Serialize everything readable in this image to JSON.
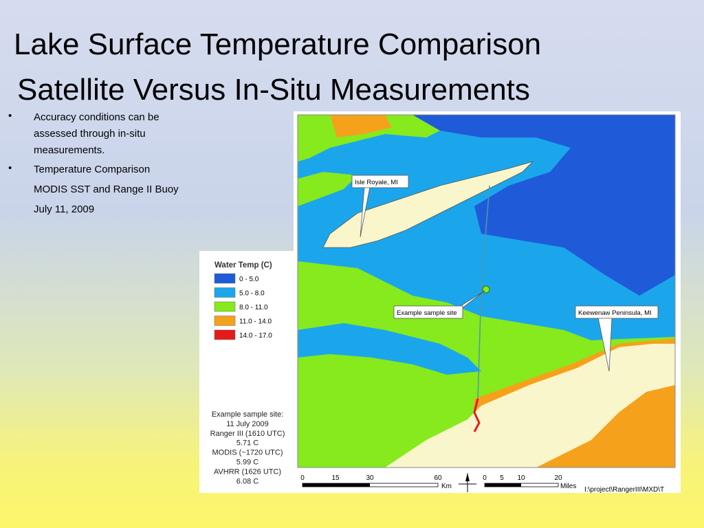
{
  "title": [
    "Lake Surface Temperature Comparison",
    "Satellite Versus In-Situ Measurements"
  ],
  "bullets": [
    "Accuracy conditions can be",
    "assessed through in-situ",
    "measurements.",
    "Temperature Comparison"
  ],
  "notes": [
    "MODIS SST and Range II Buoy",
    "July 11, 2009"
  ],
  "legend": {
    "title": "Water Temp (C)",
    "items": [
      {
        "label": "0 - 5.0",
        "color": "#1f5bd8"
      },
      {
        "label": "5.0 - 8.0",
        "color": "#1ba6ec"
      },
      {
        "label": "8.0 - 11.0",
        "color": "#86ea1c"
      },
      {
        "label": "11.0 - 14.0",
        "color": "#f6a11c"
      },
      {
        "label": "14.0 - 17.0",
        "color": "#e61a1a"
      }
    ]
  },
  "map_labels": [
    "Isle Royale, MI",
    "Example sample site",
    "Keewenaw Peninsula, MI"
  ],
  "sample_info": [
    "Example sample site:",
    "11 July 2009",
    "Ranger III (1610 UTC)",
    "5.71 C",
    "MODIS (~1720 UTC)",
    "5.99 C",
    "AVHRR (1626 UTC)",
    "6.08 C"
  ],
  "scale_km": {
    "ticks": [
      "0",
      "15",
      "30",
      "60"
    ],
    "unit": "Km"
  },
  "scale_miles": {
    "ticks": [
      "0",
      "5",
      "10",
      "20"
    ],
    "unit": "Miles"
  },
  "file_path": "I:\\project\\RangerIII\\MXD\\T"
}
